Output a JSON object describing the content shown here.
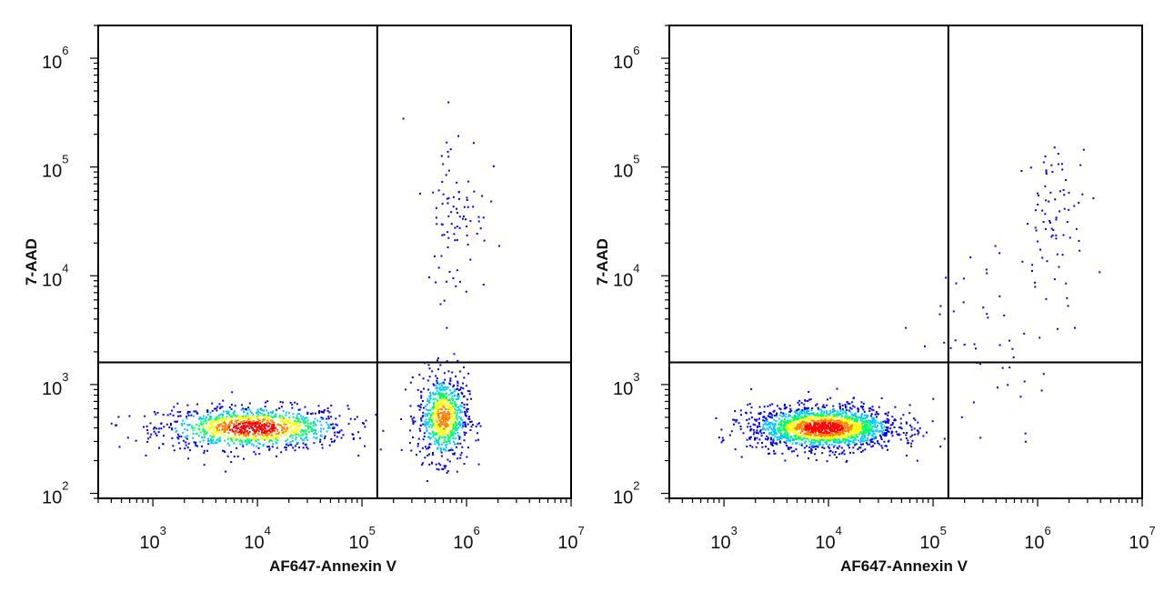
{
  "chart_data": [
    {
      "type": "scatter",
      "plot_style": "pseudocolor density dot plot",
      "xlabel": "AF647-Annexin V",
      "ylabel": "7-AAD",
      "xscale": "log",
      "yscale": "log",
      "xlim": [
        300,
        10000000
      ],
      "ylim": [
        90,
        2000000
      ],
      "x_ticks": [
        {
          "base": "10",
          "exp": "3",
          "value": 1000
        },
        {
          "base": "10",
          "exp": "4",
          "value": 10000
        },
        {
          "base": "10",
          "exp": "5",
          "value": 100000
        },
        {
          "base": "10",
          "exp": "6",
          "value": 1000000
        },
        {
          "base": "10",
          "exp": "7",
          "value": 10000000
        }
      ],
      "y_ticks": [
        {
          "base": "10",
          "exp": "2",
          "value": 100
        },
        {
          "base": "10",
          "exp": "3",
          "value": 1000
        },
        {
          "base": "10",
          "exp": "4",
          "value": 10000
        },
        {
          "base": "10",
          "exp": "5",
          "value": 100000
        },
        {
          "base": "10",
          "exp": "6",
          "value": 1000000
        }
      ],
      "quadrant_gate": {
        "x": 140000,
        "y": 1600
      },
      "populations": [
        {
          "x_center": 9000,
          "y_center": 400,
          "x_spread_decades": 0.45,
          "y_spread_decades": 0.1,
          "relative_count": 6
        },
        {
          "x_center": 600000,
          "y_center": 500,
          "x_spread_decades": 0.12,
          "y_spread_decades": 0.2,
          "relative_count": 4
        },
        {
          "x_center": 800000,
          "y_center": 40000,
          "x_spread_decades": 0.15,
          "y_spread_decades": 0.4,
          "relative_count": 0.5
        }
      ],
      "grid": false,
      "legend": "none",
      "density_colors": [
        "#0000ff",
        "#00c8ff",
        "#00ff64",
        "#ffff00",
        "#ff8000",
        "#ff0000"
      ]
    },
    {
      "type": "scatter",
      "plot_style": "pseudocolor density dot plot",
      "xlabel": "AF647-Annexin V",
      "ylabel": "7-AAD",
      "xscale": "log",
      "yscale": "log",
      "xlim": [
        300,
        10000000
      ],
      "ylim": [
        90,
        2000000
      ],
      "x_ticks": [
        {
          "base": "10",
          "exp": "3",
          "value": 1000
        },
        {
          "base": "10",
          "exp": "4",
          "value": 10000
        },
        {
          "base": "10",
          "exp": "5",
          "value": 100000
        },
        {
          "base": "10",
          "exp": "6",
          "value": 1000000
        },
        {
          "base": "10",
          "exp": "7",
          "value": 10000000
        }
      ],
      "y_ticks": [
        {
          "base": "10",
          "exp": "2",
          "value": 100
        },
        {
          "base": "10",
          "exp": "3",
          "value": 1000
        },
        {
          "base": "10",
          "exp": "4",
          "value": 10000
        },
        {
          "base": "10",
          "exp": "5",
          "value": 100000
        },
        {
          "base": "10",
          "exp": "6",
          "value": 1000000
        }
      ],
      "quadrant_gate": {
        "x": 140000,
        "y": 1600
      },
      "populations": [
        {
          "x_center": 9000,
          "y_center": 400,
          "x_spread_decades": 0.35,
          "y_spread_decades": 0.1,
          "relative_count": 10
        },
        {
          "x_center": 1500000,
          "y_center": 40000,
          "x_spread_decades": 0.15,
          "y_spread_decades": 0.3,
          "relative_count": 0.4
        },
        {
          "x_center": 400000,
          "y_center": 3000,
          "x_spread_decades": 0.4,
          "y_spread_decades": 0.4,
          "relative_count": 0.3
        }
      ],
      "grid": false,
      "legend": "none",
      "density_colors": [
        "#0000ff",
        "#00c8ff",
        "#00ff64",
        "#ffff00",
        "#ff8000",
        "#ff0000"
      ]
    }
  ]
}
